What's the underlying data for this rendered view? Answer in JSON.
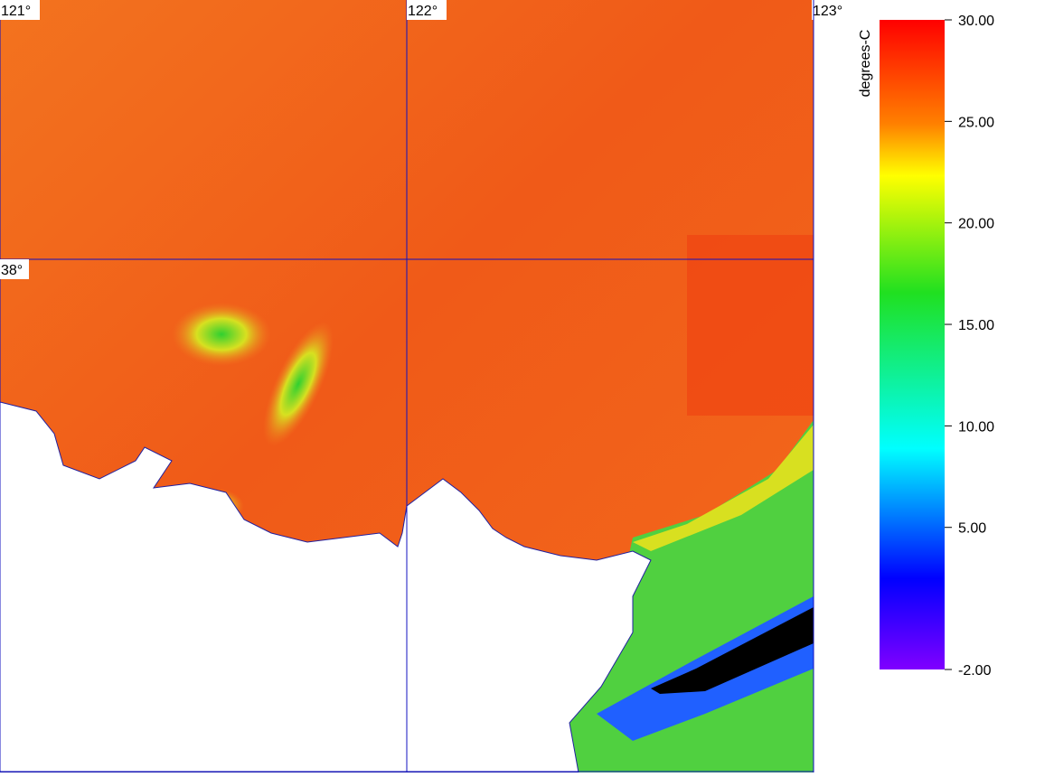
{
  "map": {
    "longitude_ticks": [
      {
        "value": 121,
        "label": "121°"
      },
      {
        "value": 122,
        "label": "122°"
      },
      {
        "value": 123,
        "label": "123°"
      }
    ],
    "latitude_ticks": [
      {
        "value": 38,
        "label": "38°"
      }
    ]
  },
  "colorbar": {
    "label": "degrees-C",
    "range": [
      -2,
      30
    ],
    "ticks": [
      {
        "value": 30,
        "label": "30.00"
      },
      {
        "value": 25,
        "label": "25.00"
      },
      {
        "value": 20,
        "label": "20.00"
      },
      {
        "value": 15,
        "label": "15.00"
      },
      {
        "value": 10,
        "label": "10.00"
      },
      {
        "value": 5,
        "label": "5.00"
      },
      {
        "value": -2,
        "label": "-2.00"
      }
    ]
  }
}
